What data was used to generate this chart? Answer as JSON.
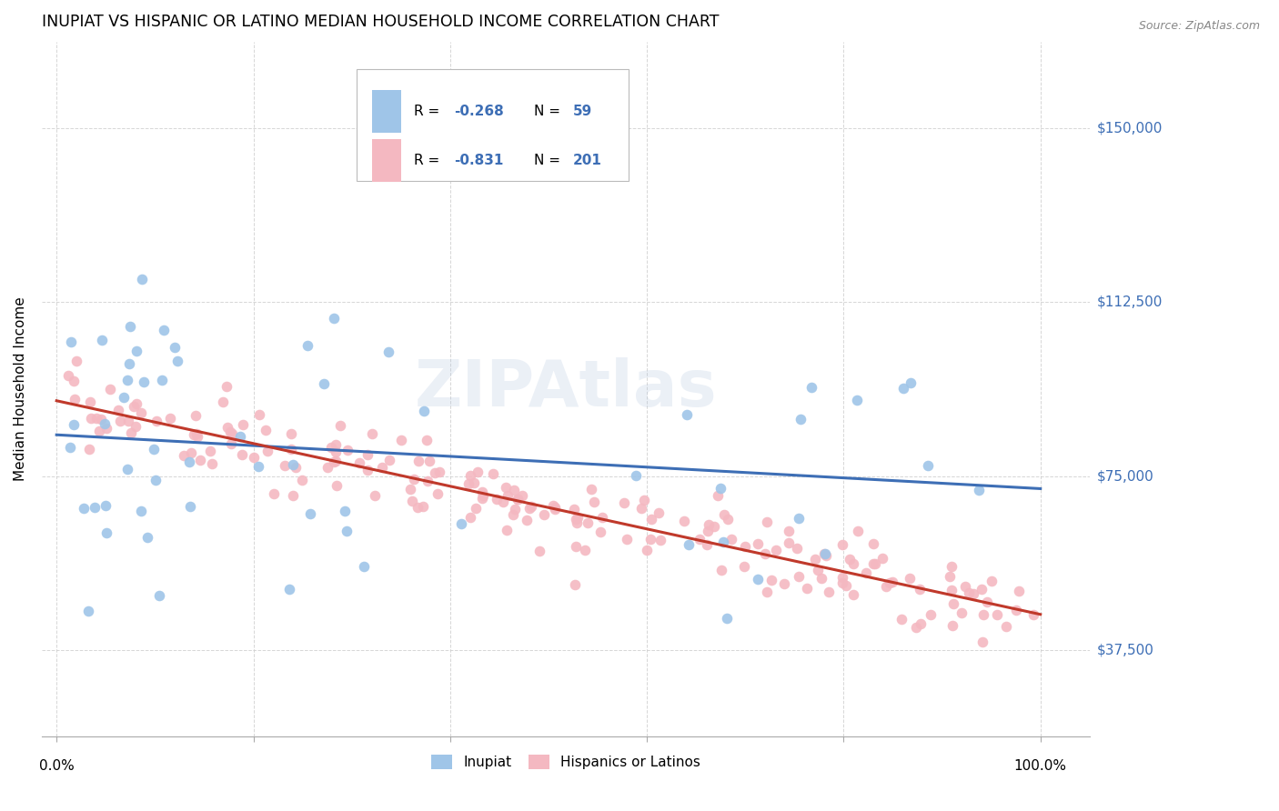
{
  "title": "INUPIAT VS HISPANIC OR LATINO MEDIAN HOUSEHOLD INCOME CORRELATION CHART",
  "source": "Source: ZipAtlas.com",
  "ylabel": "Median Household Income",
  "ytick_labels": [
    "$37,500",
    "$75,000",
    "$112,500",
    "$150,000"
  ],
  "ytick_values": [
    37500,
    75000,
    112500,
    150000
  ],
  "ylim": [
    18750,
    168750
  ],
  "color_blue": "#9fc5e8",
  "color_pink": "#f4b8c1",
  "line_blue": "#3d6eb5",
  "line_pink": "#c0392b",
  "background": "#ffffff",
  "grid_color": "#cccccc",
  "title_color": "#000000",
  "source_color": "#888888",
  "accent_color": "#3d6eb5",
  "legend_r1": "-0.268",
  "legend_n1": "59",
  "legend_r2": "-0.831",
  "legend_n2": "201"
}
